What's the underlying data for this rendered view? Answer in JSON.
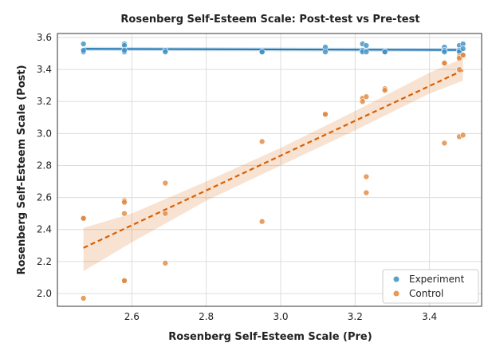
{
  "chart_data": {
    "type": "scatter",
    "title": "Rosenberg Self-Esteem Scale: Post-test vs Pre-test",
    "xlabel": "Rosenberg Self-Esteem Scale (Pre)",
    "ylabel": "Rosenberg Self-Esteem Scale (Post)",
    "xlim": [
      2.4,
      3.54
    ],
    "ylim": [
      1.92,
      3.625
    ],
    "xticks": [
      2.6,
      2.8,
      3.0,
      3.2,
      3.4
    ],
    "yticks": [
      2.0,
      2.2,
      2.4,
      2.6,
      2.8,
      3.0,
      3.2,
      3.4,
      3.6
    ],
    "xtick_labels": [
      "2.6",
      "2.8",
      "3.0",
      "3.2",
      "3.4"
    ],
    "ytick_labels": [
      "2.0",
      "2.2",
      "2.4",
      "2.6",
      "2.8",
      "3.0",
      "3.2",
      "3.4",
      "3.6"
    ],
    "grid": true,
    "legend_position": "bottom-right",
    "series": [
      {
        "name": "Experiment",
        "color": "#3d8fc4",
        "line_color": "#1f77b4",
        "line_style": "solid",
        "fit": {
          "x": [
            2.47,
            3.49
          ],
          "y": [
            3.529,
            3.522
          ]
        },
        "ci": {
          "x": [
            2.47,
            3.49
          ],
          "lower": [
            3.516,
            3.51
          ],
          "upper": [
            3.542,
            3.534
          ]
        },
        "points": [
          {
            "x": 2.47,
            "y": 3.56
          },
          {
            "x": 2.47,
            "y": 3.51
          },
          {
            "x": 2.47,
            "y": 3.52
          },
          {
            "x": 2.58,
            "y": 3.56
          },
          {
            "x": 2.58,
            "y": 3.55
          },
          {
            "x": 2.58,
            "y": 3.51
          },
          {
            "x": 2.58,
            "y": 3.52
          },
          {
            "x": 2.69,
            "y": 3.52
          },
          {
            "x": 2.69,
            "y": 3.51
          },
          {
            "x": 2.95,
            "y": 3.51
          },
          {
            "x": 2.95,
            "y": 3.51
          },
          {
            "x": 3.12,
            "y": 3.54
          },
          {
            "x": 3.12,
            "y": 3.51
          },
          {
            "x": 3.22,
            "y": 3.56
          },
          {
            "x": 3.22,
            "y": 3.52
          },
          {
            "x": 3.22,
            "y": 3.51
          },
          {
            "x": 3.23,
            "y": 3.55
          },
          {
            "x": 3.23,
            "y": 3.51
          },
          {
            "x": 3.28,
            "y": 3.51
          },
          {
            "x": 3.28,
            "y": 3.51
          },
          {
            "x": 3.44,
            "y": 3.54
          },
          {
            "x": 3.44,
            "y": 3.52
          },
          {
            "x": 3.44,
            "y": 3.51
          },
          {
            "x": 3.48,
            "y": 3.55
          },
          {
            "x": 3.48,
            "y": 3.52
          },
          {
            "x": 3.48,
            "y": 3.51
          },
          {
            "x": 3.49,
            "y": 3.56
          },
          {
            "x": 3.49,
            "y": 3.53
          }
        ]
      },
      {
        "name": "Control",
        "color": "#e0873f",
        "line_color": "#d95f02",
        "line_style": "dashed",
        "fit": {
          "x": [
            2.47,
            3.49
          ],
          "y": [
            2.285,
            3.395
          ]
        },
        "ci": {
          "x": [
            2.47,
            2.6,
            2.8,
            3.0,
            3.2,
            3.4,
            3.49
          ],
          "lower": [
            2.14,
            2.32,
            2.58,
            2.8,
            3.02,
            3.25,
            3.33
          ],
          "upper": [
            2.41,
            2.5,
            2.7,
            2.91,
            3.14,
            3.38,
            3.47
          ]
        },
        "points": [
          {
            "x": 2.47,
            "y": 2.47
          },
          {
            "x": 2.47,
            "y": 2.47
          },
          {
            "x": 2.47,
            "y": 1.97
          },
          {
            "x": 2.58,
            "y": 2.58
          },
          {
            "x": 2.58,
            "y": 2.57
          },
          {
            "x": 2.58,
            "y": 2.5
          },
          {
            "x": 2.58,
            "y": 2.08
          },
          {
            "x": 2.58,
            "y": 2.08
          },
          {
            "x": 2.69,
            "y": 2.69
          },
          {
            "x": 2.69,
            "y": 2.5
          },
          {
            "x": 2.69,
            "y": 2.19
          },
          {
            "x": 2.95,
            "y": 2.95
          },
          {
            "x": 2.95,
            "y": 2.45
          },
          {
            "x": 3.12,
            "y": 3.12
          },
          {
            "x": 3.12,
            "y": 3.12
          },
          {
            "x": 3.22,
            "y": 3.22
          },
          {
            "x": 3.22,
            "y": 3.2
          },
          {
            "x": 3.23,
            "y": 3.23
          },
          {
            "x": 3.23,
            "y": 2.73
          },
          {
            "x": 3.23,
            "y": 2.63
          },
          {
            "x": 3.28,
            "y": 3.28
          },
          {
            "x": 3.28,
            "y": 3.27
          },
          {
            "x": 3.44,
            "y": 3.44
          },
          {
            "x": 3.44,
            "y": 3.44
          },
          {
            "x": 3.44,
            "y": 2.94
          },
          {
            "x": 3.48,
            "y": 3.48
          },
          {
            "x": 3.48,
            "y": 3.47
          },
          {
            "x": 3.48,
            "y": 3.4
          },
          {
            "x": 3.48,
            "y": 2.98
          },
          {
            "x": 3.49,
            "y": 3.49
          },
          {
            "x": 3.49,
            "y": 3.49
          },
          {
            "x": 3.49,
            "y": 2.99
          }
        ]
      }
    ],
    "legend": [
      {
        "label": "Experiment",
        "color": "#3d8fc4"
      },
      {
        "label": "Control",
        "color": "#e0873f"
      }
    ]
  }
}
